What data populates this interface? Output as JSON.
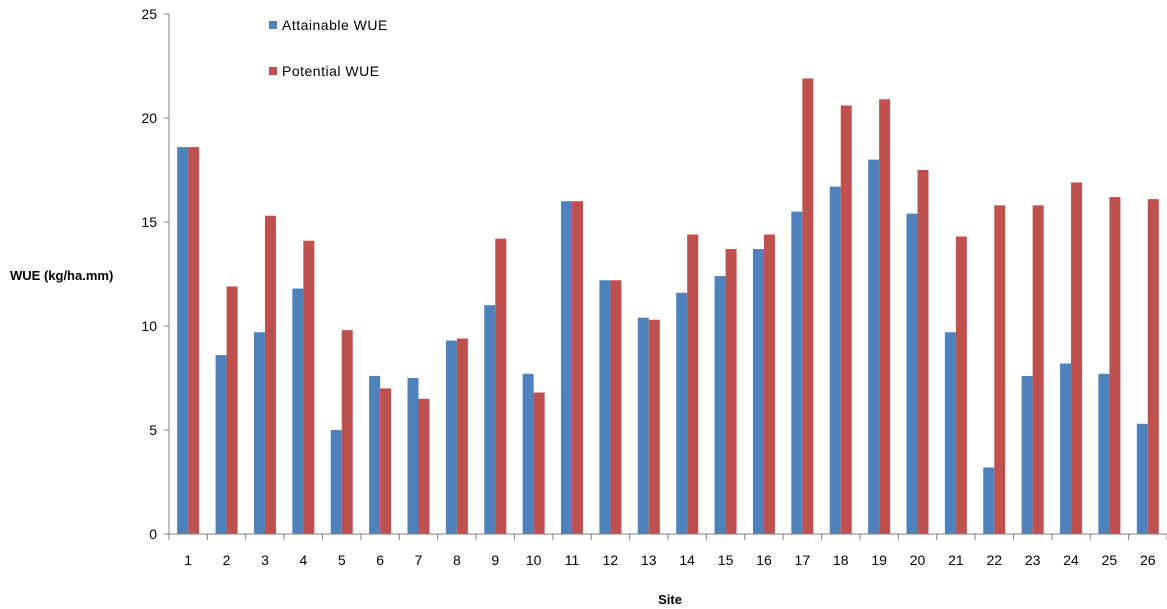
{
  "chart_data": {
    "type": "bar",
    "title": "",
    "xlabel": "Site",
    "ylabel": "WUE (kg/ha.mm)",
    "ylim": [
      0,
      25
    ],
    "yticks": [
      "0",
      "5",
      "10",
      "15",
      "20",
      "25"
    ],
    "grid": false,
    "legend_position": "top-left",
    "categories": [
      "1",
      "2",
      "3",
      "4",
      "5",
      "6",
      "7",
      "8",
      "9",
      "10",
      "11",
      "12",
      "13",
      "14",
      "15",
      "16",
      "17",
      "18",
      "19",
      "20",
      "21",
      "22",
      "23",
      "24",
      "25",
      "26"
    ],
    "series": [
      {
        "name": "Attainable WUE",
        "color": "#4f81bd",
        "values": [
          18.6,
          8.6,
          9.7,
          11.8,
          5.0,
          7.6,
          7.5,
          9.3,
          11.0,
          7.7,
          16.0,
          12.2,
          10.4,
          11.6,
          12.4,
          13.7,
          15.5,
          16.7,
          18.0,
          15.4,
          9.7,
          3.2,
          7.6,
          8.2,
          7.7,
          5.3
        ]
      },
      {
        "name": "Potential WUE",
        "color": "#c0504d",
        "values": [
          18.6,
          11.9,
          15.3,
          14.1,
          9.8,
          7.0,
          6.5,
          9.4,
          14.2,
          6.8,
          16.0,
          12.2,
          10.3,
          14.4,
          13.7,
          14.4,
          21.9,
          20.6,
          20.9,
          17.5,
          14.3,
          15.8,
          15.8,
          16.9,
          16.2,
          16.1
        ]
      }
    ]
  }
}
